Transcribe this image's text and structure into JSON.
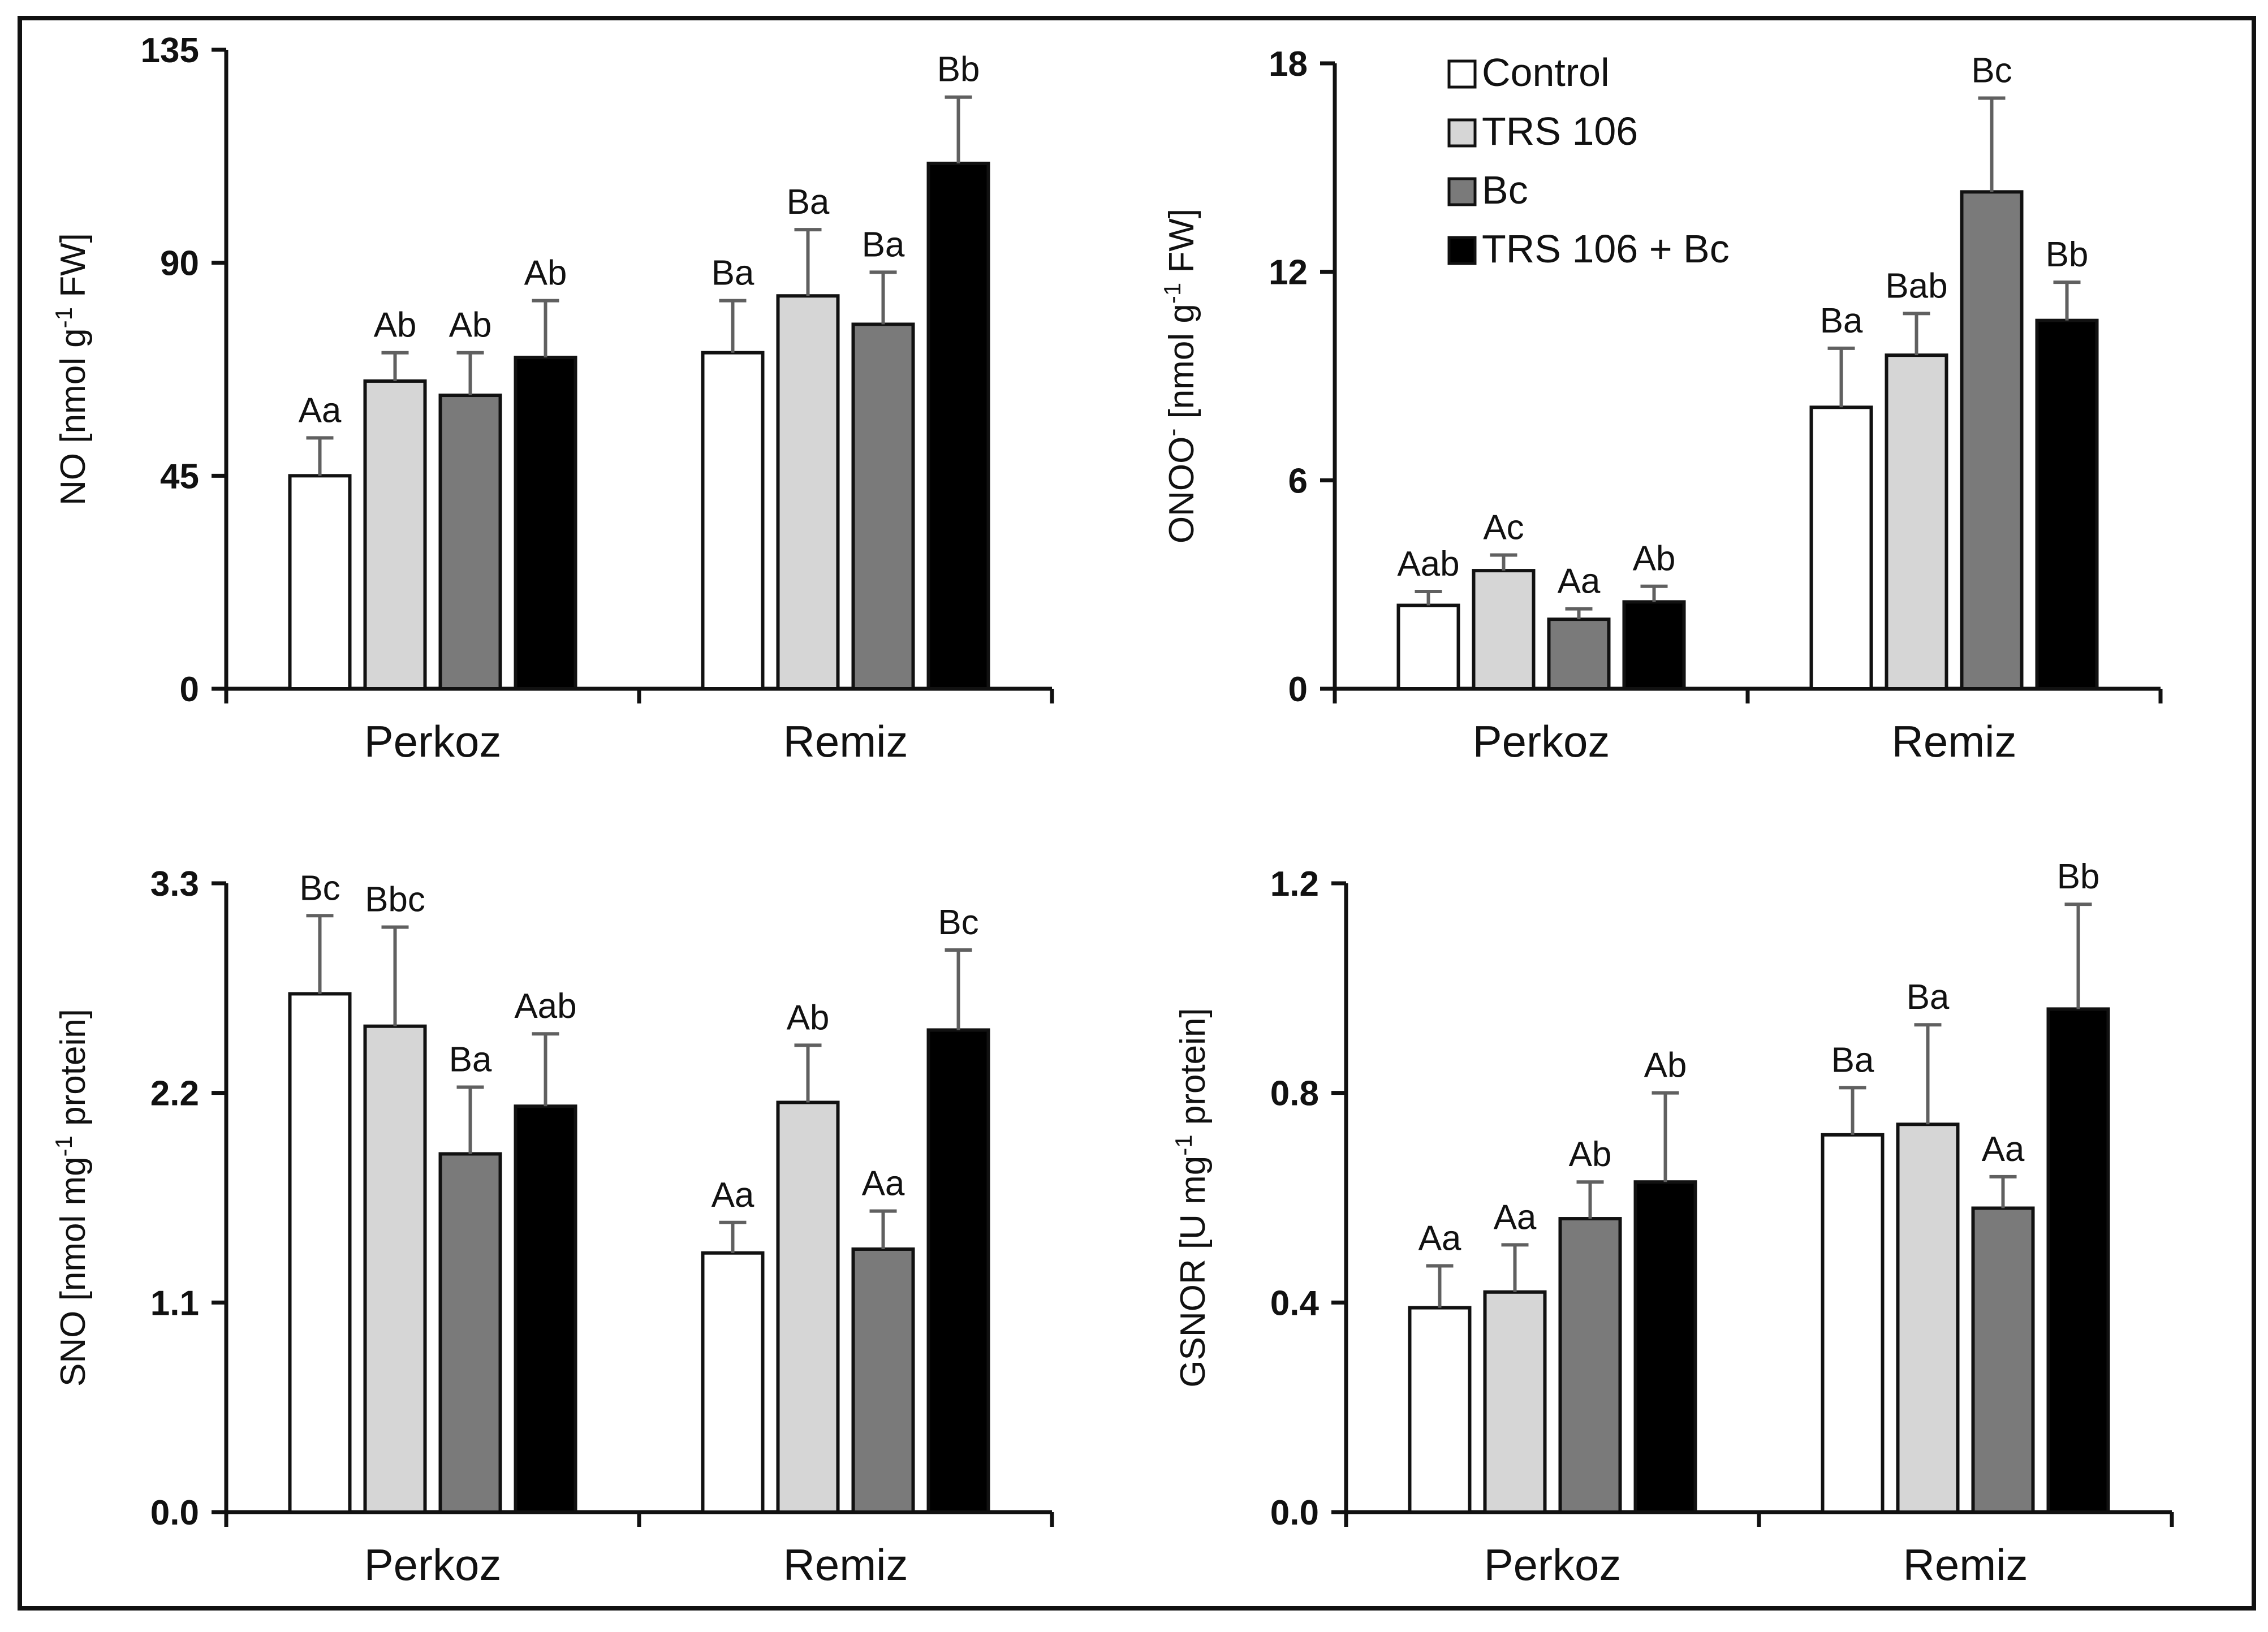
{
  "series_styles": [
    {
      "fill": "#ffffff"
    },
    {
      "fill": "#d6d6d6"
    },
    {
      "fill": "#7a7a7a"
    },
    {
      "fill": "#000000"
    }
  ],
  "legend": {
    "items": [
      "Control",
      "TRS 106",
      "Bc",
      "TRS 106 + Bc"
    ]
  },
  "chart_data": [
    {
      "type": "bar",
      "panel": "top-left",
      "ylabel_parts": [
        "NO [nmol g",
        "-1",
        " FW]"
      ],
      "ylim": [
        0,
        135
      ],
      "yticks": [
        "0",
        "45",
        "90",
        "135"
      ],
      "categories": [
        "Perkoz",
        "Remiz"
      ],
      "series": [
        {
          "name": "Control",
          "values": [
            45,
            71
          ],
          "errors": [
            8,
            11
          ],
          "labels": [
            "Aa",
            "Ba"
          ]
        },
        {
          "name": "TRS 106",
          "values": [
            65,
            83
          ],
          "errors": [
            6,
            14
          ],
          "labels": [
            "Ab",
            "Ba"
          ]
        },
        {
          "name": "Bc",
          "values": [
            62,
            77
          ],
          "errors": [
            9,
            11
          ],
          "labels": [
            "Ab",
            "Ba"
          ]
        },
        {
          "name": "TRS 106 + Bc",
          "values": [
            70,
            111
          ],
          "errors": [
            12,
            14
          ],
          "labels": [
            "Ab",
            "Bb"
          ]
        }
      ]
    },
    {
      "type": "bar",
      "panel": "top-right",
      "ylabel_parts": [
        "ONOO",
        "-",
        " [nmol g",
        "-1",
        " FW]"
      ],
      "ylim": [
        0,
        18
      ],
      "yticks": [
        "0",
        "6",
        "12",
        "18"
      ],
      "categories": [
        "Perkoz",
        "Remiz"
      ],
      "series": [
        {
          "name": "Control",
          "values": [
            2.4,
            8.1
          ],
          "errors": [
            0.4,
            1.7
          ],
          "labels": [
            "Aab",
            "Ba"
          ]
        },
        {
          "name": "TRS 106",
          "values": [
            3.4,
            9.6
          ],
          "errors": [
            0.45,
            1.2
          ],
          "labels": [
            "Ac",
            "Bab"
          ]
        },
        {
          "name": "Bc",
          "values": [
            2.0,
            14.3
          ],
          "errors": [
            0.3,
            2.7
          ],
          "labels": [
            "Aa",
            "Bc"
          ]
        },
        {
          "name": "TRS 106 + Bc",
          "values": [
            2.5,
            10.6
          ],
          "errors": [
            0.45,
            1.1
          ],
          "labels": [
            "Ab",
            "Bb"
          ]
        }
      ]
    },
    {
      "type": "bar",
      "panel": "bottom-left",
      "ylabel_parts": [
        "SNO [nmol mg",
        "-1",
        " protein]"
      ],
      "ylim": [
        0,
        3.3
      ],
      "yticks": [
        "0.0",
        "1.1",
        "2.2",
        "3.3"
      ],
      "categories": [
        "Perkoz",
        "Remiz"
      ],
      "series": [
        {
          "name": "Control",
          "values": [
            2.72,
            1.36
          ],
          "errors": [
            0.41,
            0.16
          ],
          "labels": [
            "Bc",
            "Aa"
          ]
        },
        {
          "name": "TRS 106",
          "values": [
            2.55,
            2.15
          ],
          "errors": [
            0.52,
            0.3
          ],
          "labels": [
            "Bbc",
            "Ab"
          ]
        },
        {
          "name": "Bc",
          "values": [
            1.88,
            1.38
          ],
          "errors": [
            0.35,
            0.2
          ],
          "labels": [
            "Ba",
            "Aa"
          ]
        },
        {
          "name": "TRS 106 + Bc",
          "values": [
            2.13,
            2.53
          ],
          "errors": [
            0.38,
            0.42
          ],
          "labels": [
            "Aab",
            "Bc"
          ]
        }
      ]
    },
    {
      "type": "bar",
      "panel": "bottom-right",
      "ylabel_parts": [
        "GSNOR [U mg",
        "-1",
        " protein]"
      ],
      "ylim": [
        0,
        1.2
      ],
      "yticks": [
        "0.0",
        "0.4",
        "0.8",
        "1.2"
      ],
      "categories": [
        "Perkoz",
        "Remiz"
      ],
      "series": [
        {
          "name": "Control",
          "values": [
            0.39,
            0.72
          ],
          "errors": [
            0.08,
            0.09
          ],
          "labels": [
            "Aa",
            "Ba"
          ]
        },
        {
          "name": "TRS 106",
          "values": [
            0.42,
            0.74
          ],
          "errors": [
            0.09,
            0.19
          ],
          "labels": [
            "Aa",
            "Ba"
          ]
        },
        {
          "name": "Bc",
          "values": [
            0.56,
            0.58
          ],
          "errors": [
            0.07,
            0.06
          ],
          "labels": [
            "Ab",
            "Aa"
          ]
        },
        {
          "name": "TRS 106 + Bc",
          "values": [
            0.63,
            0.96
          ],
          "errors": [
            0.17,
            0.2
          ],
          "labels": [
            "Ab",
            "Bb"
          ]
        }
      ]
    }
  ]
}
